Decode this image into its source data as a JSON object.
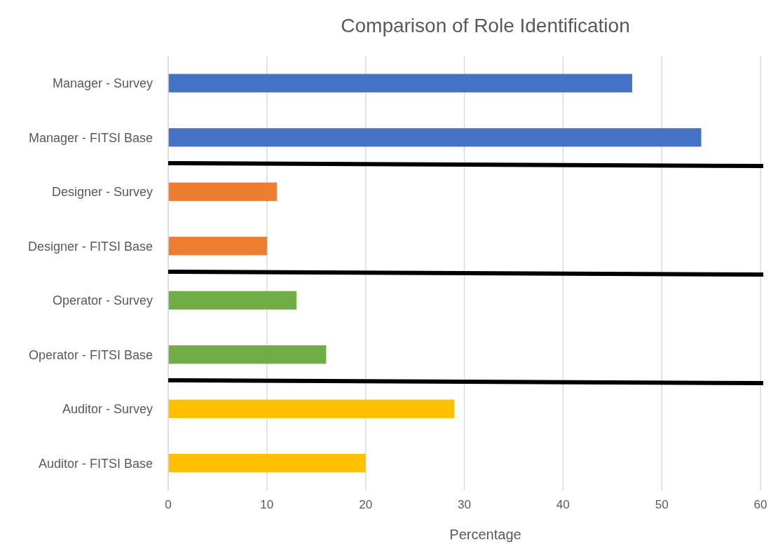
{
  "chart_data": {
    "type": "bar",
    "orientation": "horizontal",
    "title": "Comparison of Role Identification",
    "xlabel": "Percentage",
    "categories": [
      "Manager - Survey",
      "Manager - FITSI Base",
      "Designer - Survey",
      "Designer - FITSI Base",
      "Operator - Survey",
      "Operator - FITSI Base",
      "Auditor - Survey",
      "Auditor - FITSI Base"
    ],
    "values": [
      47,
      54,
      11,
      10,
      13,
      16,
      29,
      20
    ],
    "colors": [
      "#4472c4",
      "#4472c4",
      "#ed7d31",
      "#ed7d31",
      "#70ad47",
      "#70ad47",
      "#ffc000",
      "#ffc000"
    ],
    "xlim": [
      0,
      60
    ],
    "xticks": [
      0,
      10,
      20,
      30,
      40,
      50,
      60
    ],
    "grid": "x"
  }
}
